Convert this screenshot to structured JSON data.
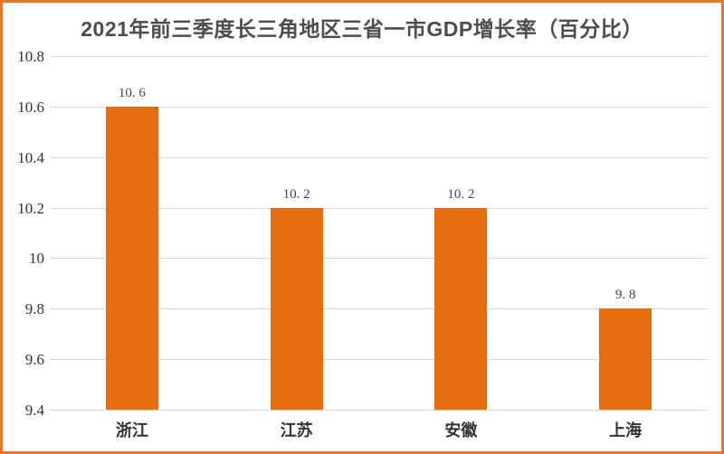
{
  "title": "2021年前三季度长三角地区三省一市GDP增长率（百分比）",
  "colors": {
    "bar": "#E46D10",
    "frame_border": "#E8752B",
    "gridline": "#D9D9D9",
    "title_text": "#4D4D4D",
    "axis_text": "#333333",
    "value_label_text": "#444444"
  },
  "chart_data": {
    "type": "bar",
    "title": "2021年前三季度长三角地区三省一市GDP增长率（百分比）",
    "categories": [
      "浙江",
      "江苏",
      "安徽",
      "上海"
    ],
    "values": [
      10.6,
      10.2,
      10.2,
      9.8
    ],
    "value_labels": [
      "10. 6",
      "10. 2",
      "10. 2",
      "9. 8"
    ],
    "xlabel": "",
    "ylabel": "",
    "ylim": [
      9.4,
      10.8
    ],
    "ytick_step": 0.2,
    "ytick_labels": [
      "9.4",
      "9.6",
      "9.8",
      "10",
      "10.2",
      "10.4",
      "10.6",
      "10.8"
    ],
    "grid": "horizontal",
    "legend": "none",
    "bar_color": "#E46D10"
  }
}
